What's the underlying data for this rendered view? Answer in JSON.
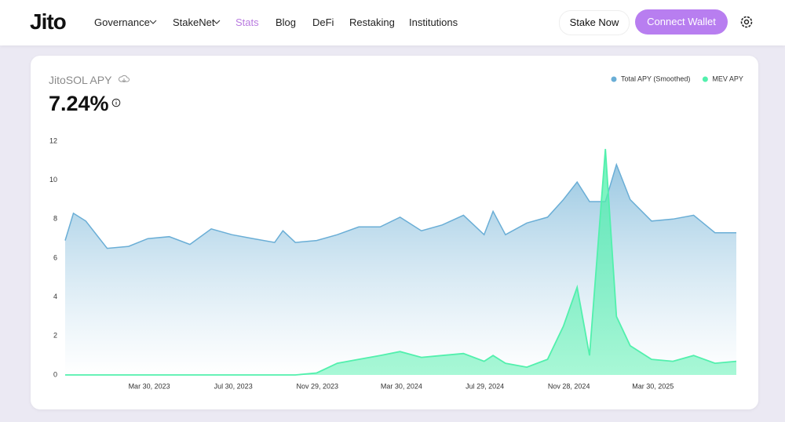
{
  "header": {
    "logo": "Jito",
    "nav": [
      "Governance",
      "StakeNet",
      "Stats",
      "Blog",
      "DeFi",
      "Restaking",
      "Institutions"
    ],
    "stake_button": "Stake Now",
    "connect_button": "Connect Wallet"
  },
  "card": {
    "headline": "7.24%"
  },
  "chart_data": {
    "type": "area-line",
    "title": "JitoSOL APY",
    "x": [
      "2022-11-28",
      "2022-12-10",
      "2022-12-28",
      "2023-01-28",
      "2023-02-28",
      "2023-03-28",
      "2023-04-28",
      "2023-05-28",
      "2023-06-28",
      "2023-07-28",
      "2023-08-28",
      "2023-09-28",
      "2023-10-10",
      "2023-10-28",
      "2023-11-28",
      "2023-12-28",
      "2024-01-28",
      "2024-02-28",
      "2024-03-28",
      "2024-04-28",
      "2024-05-28",
      "2024-06-28",
      "2024-07-28",
      "2024-08-10",
      "2024-08-28",
      "2024-09-28",
      "2024-10-28",
      "2024-11-20",
      "2024-12-10",
      "2024-12-28",
      "2025-01-20",
      "2025-02-05",
      "2025-02-25",
      "2025-03-28",
      "2025-04-28",
      "2025-05-28",
      "2025-06-28",
      "2025-07-29"
    ],
    "series": [
      {
        "name": "Total APY (Smoothed)",
        "color": "#6aaed6",
        "values": [
          6.9,
          8.3,
          7.9,
          6.5,
          6.6,
          7.0,
          7.1,
          6.7,
          7.5,
          7.2,
          7.0,
          6.8,
          7.4,
          6.8,
          6.9,
          7.2,
          7.6,
          7.6,
          8.1,
          7.4,
          7.7,
          8.2,
          7.2,
          8.4,
          7.2,
          7.8,
          8.1,
          9.0,
          9.9,
          8.9,
          8.9,
          10.8,
          9.0,
          7.9,
          8.0,
          8.2,
          7.3,
          7.3
        ]
      },
      {
        "name": "MEV APY",
        "color": "#52f0ad",
        "values": [
          0,
          0,
          0,
          0,
          0,
          0,
          0,
          0,
          0,
          0,
          0,
          0,
          0,
          0,
          0.1,
          0.6,
          0.8,
          1.0,
          1.2,
          0.9,
          1.0,
          1.1,
          0.7,
          1.0,
          0.6,
          0.4,
          0.8,
          2.5,
          4.5,
          1.0,
          11.6,
          3.0,
          1.5,
          0.8,
          0.7,
          1.0,
          0.6,
          0.7
        ]
      }
    ],
    "xlim": [
      "2022-11-28",
      "2025-07-29"
    ],
    "xticks": [
      {
        "value": "2023-03-30",
        "label": "Mar 30, 2023"
      },
      {
        "value": "2023-07-30",
        "label": "Jul 30, 2023"
      },
      {
        "value": "2023-11-29",
        "label": "Nov 29, 2023"
      },
      {
        "value": "2024-03-30",
        "label": "Mar 30, 2024"
      },
      {
        "value": "2024-07-29",
        "label": "Jul 29, 2024"
      },
      {
        "value": "2024-11-28",
        "label": "Nov 28, 2024"
      },
      {
        "value": "2025-03-30",
        "label": "Mar 30, 2025"
      }
    ],
    "ylim": [
      0,
      12
    ],
    "yticks": [
      0,
      2,
      4,
      6,
      8,
      10,
      12
    ],
    "grid": false,
    "legend": "top-right"
  }
}
